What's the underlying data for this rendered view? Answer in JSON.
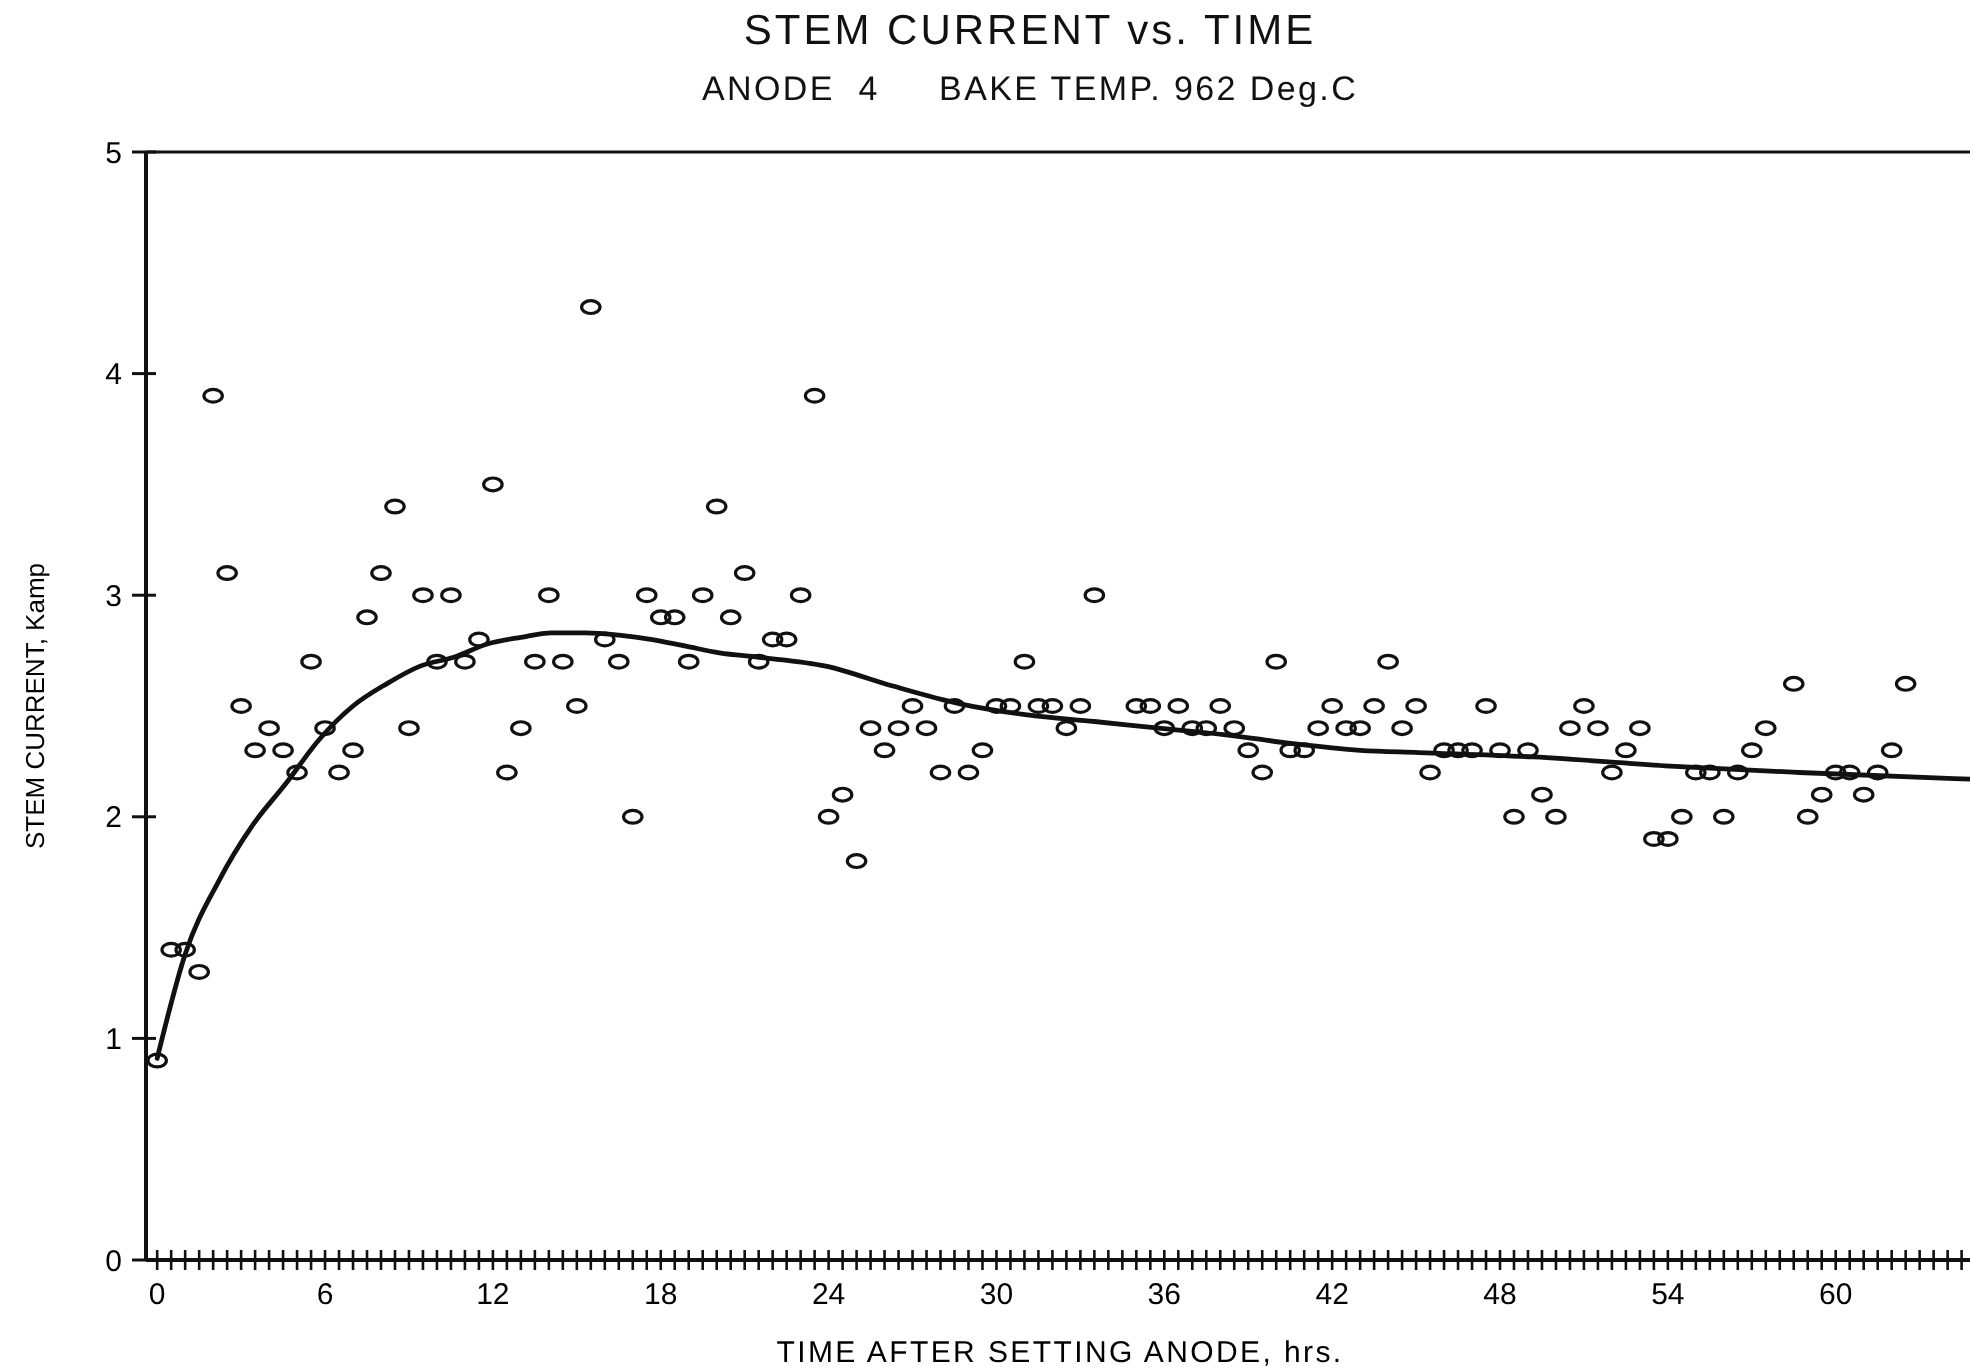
{
  "chart_data": {
    "type": "scatter",
    "title": "STEM CURRENT vs. TIME",
    "subtitle": "ANODE  4     BAKE TEMP. 962 Deg.C",
    "xlabel": "TIME AFTER SETTING ANODE, hrs.",
    "ylabel": "STEM CURRENT, Kamp",
    "xlim": [
      -0.4,
      64.8
    ],
    "ylim": [
      0,
      5
    ],
    "yticks": [
      0,
      1,
      2,
      3,
      4,
      5
    ],
    "xticks": [
      0,
      {
        "value": 0.5,
        "label": null
      },
      {
        "value": 1,
        "label": null
      },
      {
        "value": 1.5,
        "label": null
      },
      {
        "value": 2,
        "label": null
      },
      {
        "value": 2.5,
        "label": null
      },
      {
        "value": 3,
        "label": null
      },
      {
        "value": 3.5,
        "label": null
      },
      {
        "value": 4,
        "label": null
      },
      {
        "value": 4.5,
        "label": null
      },
      {
        "value": 5,
        "label": null
      },
      {
        "value": 5.5,
        "label": null
      },
      6,
      {
        "value": 6.5,
        "label": null
      },
      {
        "value": 7,
        "label": null
      },
      {
        "value": 7.5,
        "label": null
      },
      {
        "value": 8,
        "label": null
      },
      {
        "value": 8.5,
        "label": null
      },
      {
        "value": 9,
        "label": null
      },
      {
        "value": 9.5,
        "label": null
      },
      {
        "value": 10,
        "label": null
      },
      {
        "value": 10.5,
        "label": null
      },
      {
        "value": 11,
        "label": null
      },
      {
        "value": 11.5,
        "label": null
      },
      12,
      {
        "value": 12.5,
        "label": null
      },
      {
        "value": 13,
        "label": null
      },
      {
        "value": 13.5,
        "label": null
      },
      {
        "value": 14,
        "label": null
      },
      {
        "value": 14.5,
        "label": null
      },
      {
        "value": 15,
        "label": null
      },
      {
        "value": 15.5,
        "label": null
      },
      {
        "value": 16,
        "label": null
      },
      {
        "value": 16.5,
        "label": null
      },
      {
        "value": 17,
        "label": null
      },
      {
        "value": 17.5,
        "label": null
      },
      18,
      {
        "value": 18.5,
        "label": null
      },
      {
        "value": 19,
        "label": null
      },
      {
        "value": 19.5,
        "label": null
      },
      {
        "value": 20,
        "label": null
      },
      {
        "value": 20.5,
        "label": null
      },
      {
        "value": 21,
        "label": null
      },
      {
        "value": 21.5,
        "label": null
      },
      {
        "value": 22,
        "label": null
      },
      {
        "value": 22.5,
        "label": null
      },
      {
        "value": 23,
        "label": null
      },
      {
        "value": 23.5,
        "label": null
      },
      24,
      {
        "value": 24.5,
        "label": null
      },
      {
        "value": 25,
        "label": null
      },
      {
        "value": 25.5,
        "label": null
      },
      {
        "value": 26,
        "label": null
      },
      {
        "value": 26.5,
        "label": null
      },
      {
        "value": 27,
        "label": null
      },
      {
        "value": 27.5,
        "label": null
      },
      {
        "value": 28,
        "label": null
      },
      {
        "value": 28.5,
        "label": null
      },
      {
        "value": 29,
        "label": null
      },
      {
        "value": 29.5,
        "label": null
      },
      30,
      {
        "value": 30.5,
        "label": null
      },
      {
        "value": 31,
        "label": null
      },
      {
        "value": 31.5,
        "label": null
      },
      {
        "value": 32,
        "label": null
      },
      {
        "value": 32.5,
        "label": null
      },
      {
        "value": 33,
        "label": null
      },
      {
        "value": 33.5,
        "label": null
      },
      {
        "value": 34,
        "label": null
      },
      {
        "value": 34.5,
        "label": null
      },
      {
        "value": 35,
        "label": null
      },
      {
        "value": 35.5,
        "label": null
      },
      36,
      {
        "value": 36.5,
        "label": null
      },
      {
        "value": 37,
        "label": null
      },
      {
        "value": 37.5,
        "label": null
      },
      {
        "value": 38,
        "label": null
      },
      {
        "value": 38.5,
        "label": null
      },
      {
        "value": 39,
        "label": null
      },
      {
        "value": 39.5,
        "label": null
      },
      {
        "value": 40,
        "label": null
      },
      {
        "value": 40.5,
        "label": null
      },
      {
        "value": 41,
        "label": null
      },
      {
        "value": 41.5,
        "label": null
      },
      42,
      {
        "value": 42.5,
        "label": null
      },
      {
        "value": 43,
        "label": null
      },
      {
        "value": 43.5,
        "label": null
      },
      {
        "value": 44,
        "label": null
      },
      {
        "value": 44.5,
        "label": null
      },
      {
        "value": 45,
        "label": null
      },
      {
        "value": 45.5,
        "label": null
      },
      {
        "value": 46,
        "label": null
      },
      {
        "value": 46.5,
        "label": null
      },
      {
        "value": 47,
        "label": null
      },
      {
        "value": 47.5,
        "label": null
      },
      48,
      {
        "value": 48.5,
        "label": null
      },
      {
        "value": 49,
        "label": null
      },
      {
        "value": 49.5,
        "label": null
      },
      {
        "value": 50,
        "label": null
      },
      {
        "value": 50.5,
        "label": null
      },
      {
        "value": 51,
        "label": null
      },
      {
        "value": 51.5,
        "label": null
      },
      {
        "value": 52,
        "label": null
      },
      {
        "value": 52.5,
        "label": null
      },
      {
        "value": 53,
        "label": null
      },
      {
        "value": 53.5,
        "label": null
      },
      54,
      {
        "value": 54.5,
        "label": null
      },
      {
        "value": 55,
        "label": null
      },
      {
        "value": 55.5,
        "label": null
      },
      {
        "value": 56,
        "label": null
      },
      {
        "value": 56.5,
        "label": null
      },
      {
        "value": 57,
        "label": null
      },
      {
        "value": 57.5,
        "label": null
      },
      {
        "value": 58,
        "label": null
      },
      {
        "value": 58.5,
        "label": null
      },
      {
        "value": 59,
        "label": null
      },
      {
        "value": 59.5,
        "label": null
      },
      60,
      {
        "value": 60.5,
        "label": null
      },
      {
        "value": 61,
        "label": null
      },
      {
        "value": 61.5,
        "label": null
      },
      {
        "value": 62,
        "label": null
      },
      {
        "value": 62.5,
        "label": null
      },
      {
        "value": 63,
        "label": null
      },
      {
        "value": 63.5,
        "label": null
      },
      {
        "value": 64,
        "label": null
      },
      {
        "value": 64.5,
        "label": null
      }
    ],
    "grid": false,
    "marker": "circle",
    "series": [
      {
        "color": "#111111",
        "x": [
          0,
          0.5,
          1,
          1.5,
          2,
          2.5,
          3,
          3.5,
          4,
          4.5,
          5,
          5.5,
          6,
          6.5,
          7,
          7.5,
          8,
          8.5,
          9,
          9.5,
          10,
          10.5,
          11,
          11.5,
          12,
          12.5,
          13,
          13.5,
          14,
          14.5,
          15,
          15.5,
          16,
          16.5,
          17,
          17.5,
          18,
          18.5,
          19,
          19.5,
          20,
          20.5,
          21,
          21.5,
          22,
          22.5,
          23,
          23.5,
          24,
          24.5,
          25,
          25.5,
          26,
          26.5,
          27,
          27.5,
          28,
          28.5,
          29,
          29.5,
          30,
          30.5,
          31,
          31.5,
          32,
          32.5,
          33,
          33.5,
          35,
          35.5,
          36,
          36.5,
          37,
          37.5,
          38,
          38.5,
          39,
          39.5,
          40,
          40.5,
          41,
          41.5,
          42,
          42.5,
          43,
          43.5,
          44,
          44.5,
          45,
          45.5,
          46,
          46.5,
          47,
          47.5,
          48,
          48.5,
          49,
          49.5,
          50,
          50.5,
          51,
          51.5,
          52,
          52.5,
          53,
          53.5,
          54,
          54.5,
          55,
          55.5,
          56,
          56.5,
          57,
          57.5,
          58.5,
          59,
          59.5,
          60,
          60.5,
          61,
          61.5,
          62,
          62.5
        ],
        "values": [
          0.9,
          1.4,
          1.4,
          1.3,
          3.9,
          3.1,
          2.5,
          2.3,
          2.4,
          2.3,
          2.2,
          2.7,
          2.4,
          2.2,
          2.3,
          2.9,
          3.1,
          3.4,
          2.4,
          3.0,
          2.7,
          3.0,
          2.7,
          2.8,
          3.5,
          2.2,
          2.4,
          2.7,
          3.0,
          2.7,
          2.5,
          4.3,
          2.8,
          2.7,
          2.0,
          3.0,
          2.9,
          2.9,
          2.7,
          3.0,
          3.4,
          2.9,
          3.1,
          2.7,
          2.8,
          2.8,
          3.0,
          3.9,
          2.0,
          2.1,
          1.8,
          2.4,
          2.3,
          2.4,
          2.5,
          2.4,
          2.2,
          2.5,
          2.2,
          2.3,
          2.5,
          2.5,
          2.7,
          2.5,
          2.5,
          2.4,
          2.5,
          3.0,
          2.5,
          2.5,
          2.4,
          2.5,
          2.4,
          2.4,
          2.5,
          2.4,
          2.3,
          2.2,
          2.7,
          2.3,
          2.3,
          2.4,
          2.5,
          2.4,
          2.4,
          2.5,
          2.7,
          2.4,
          2.5,
          2.2,
          2.3,
          2.3,
          2.3,
          2.5,
          2.3,
          2.0,
          2.3,
          2.1,
          2.0,
          2.4,
          2.5,
          2.4,
          2.2,
          2.3,
          2.4,
          1.9,
          1.9,
          2.0,
          2.2,
          2.2,
          2.0,
          2.2,
          2.3,
          2.4,
          2.6,
          2.0,
          2.1,
          2.2,
          2.2,
          2.1,
          2.2,
          2.3,
          2.6
        ]
      },
      {
        "type": "line",
        "color": "#111111",
        "marker": "none",
        "line_style": "solid",
        "x": [
          0,
          1,
          2.2,
          3.4,
          4.6,
          5.8,
          7,
          8.2,
          9.4,
          10.6,
          11.8,
          13,
          14.1,
          15.3,
          16.5,
          17.7,
          18.9,
          20.1,
          21.5,
          23.9,
          26.3,
          28.7,
          31.1,
          33.5,
          35.8,
          38.2,
          40.6,
          43,
          45.1,
          49.2,
          53.9,
          58.7,
          64.8
        ],
        "values": [
          0.91,
          1.38,
          1.71,
          1.96,
          2.15,
          2.35,
          2.5,
          2.6,
          2.68,
          2.72,
          2.78,
          2.81,
          2.83,
          2.83,
          2.82,
          2.8,
          2.77,
          2.74,
          2.72,
          2.68,
          2.59,
          2.51,
          2.46,
          2.43,
          2.4,
          2.37,
          2.33,
          2.3,
          2.29,
          2.27,
          2.23,
          2.2,
          2.17
        ]
      }
    ]
  }
}
